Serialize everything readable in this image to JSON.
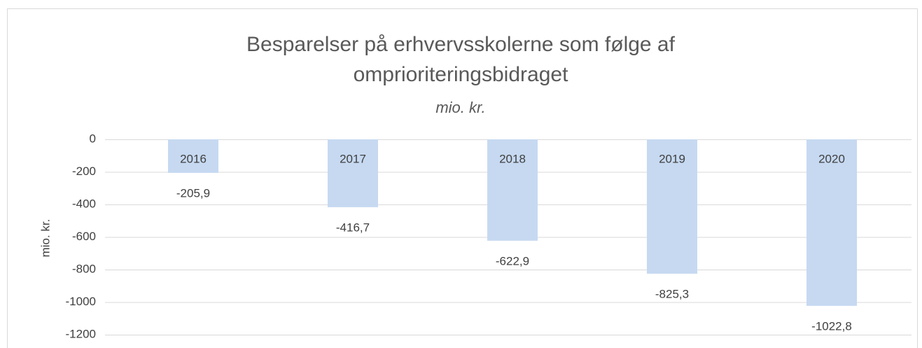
{
  "chart_data": {
    "type": "bar",
    "title": "Besparelser på erhvervsskolerne som følge af omprioriteringsbidraget",
    "subtitle": "mio. kr.",
    "y_label": "mio. kr.",
    "categories": [
      "2016",
      "2017",
      "2018",
      "2019",
      "2020"
    ],
    "values": [
      -205.9,
      -416.7,
      -622.9,
      -825.3,
      -1022.8
    ],
    "value_labels": [
      "-205,9",
      "-416,7",
      "-622,9",
      "-825,3",
      "-1022,8"
    ],
    "color": "#c6d9f1",
    "ylim": [
      -1200,
      0
    ],
    "yticks": [
      -1200,
      -1000,
      -800,
      -600,
      -400,
      -200,
      0
    ],
    "grid": true
  }
}
